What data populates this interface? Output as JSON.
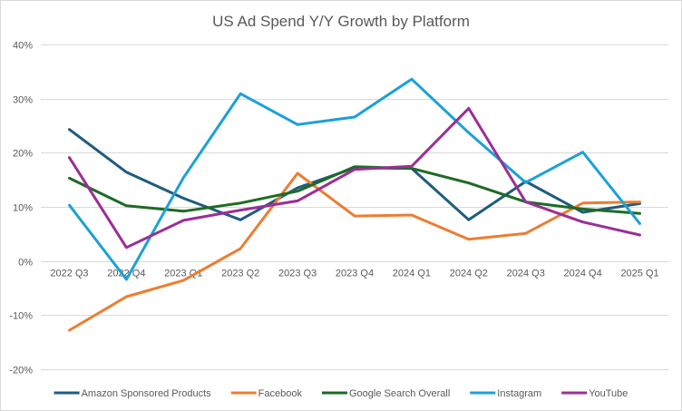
{
  "chart_data": {
    "type": "line",
    "title": "US Ad Spend Y/Y Growth by Platform",
    "xlabel": "",
    "ylabel": "",
    "categories": [
      "2022 Q3",
      "2022 Q4",
      "2023 Q1",
      "2023 Q2",
      "2023 Q3",
      "2023 Q4",
      "2024 Q1",
      "2024 Q2",
      "2024 Q3",
      "2024 Q4",
      "2025 Q1"
    ],
    "ylim": [
      -20,
      40
    ],
    "yticks": [
      40,
      30,
      20,
      10,
      0,
      -10,
      -20
    ],
    "ytick_labels": [
      "40%",
      "30%",
      "20%",
      "10%",
      "0%",
      "-10%",
      "-20%"
    ],
    "y_unit": "%",
    "grid": true,
    "legend_position": "bottom",
    "series": [
      {
        "name": "Amazon Sponsored Products",
        "color": "#1f5c7f",
        "values": [
          24.3,
          16.4,
          11.6,
          7.6,
          13.5,
          17.2,
          17.1,
          7.6,
          14.7,
          9.0,
          10.6
        ]
      },
      {
        "name": "Facebook",
        "color": "#ed7d31",
        "values": [
          -12.8,
          -6.6,
          -3.6,
          2.3,
          16.2,
          8.3,
          8.5,
          4.0,
          5.1,
          10.7,
          10.9
        ]
      },
      {
        "name": "Google Search Overall",
        "color": "#1e6b24",
        "values": [
          15.3,
          10.2,
          9.2,
          10.7,
          12.9,
          17.4,
          17.1,
          14.4,
          10.9,
          9.6,
          8.8
        ]
      },
      {
        "name": "Instagram",
        "color": "#1ba1d6",
        "values": [
          10.3,
          -3.4,
          15.4,
          30.9,
          25.2,
          26.6,
          33.6,
          23.7,
          14.5,
          20.1,
          6.9
        ]
      },
      {
        "name": "YouTube",
        "color": "#9a2f96",
        "values": [
          19.1,
          2.5,
          7.5,
          9.4,
          11.1,
          16.9,
          17.5,
          28.2,
          10.9,
          7.2,
          4.8
        ]
      }
    ]
  }
}
